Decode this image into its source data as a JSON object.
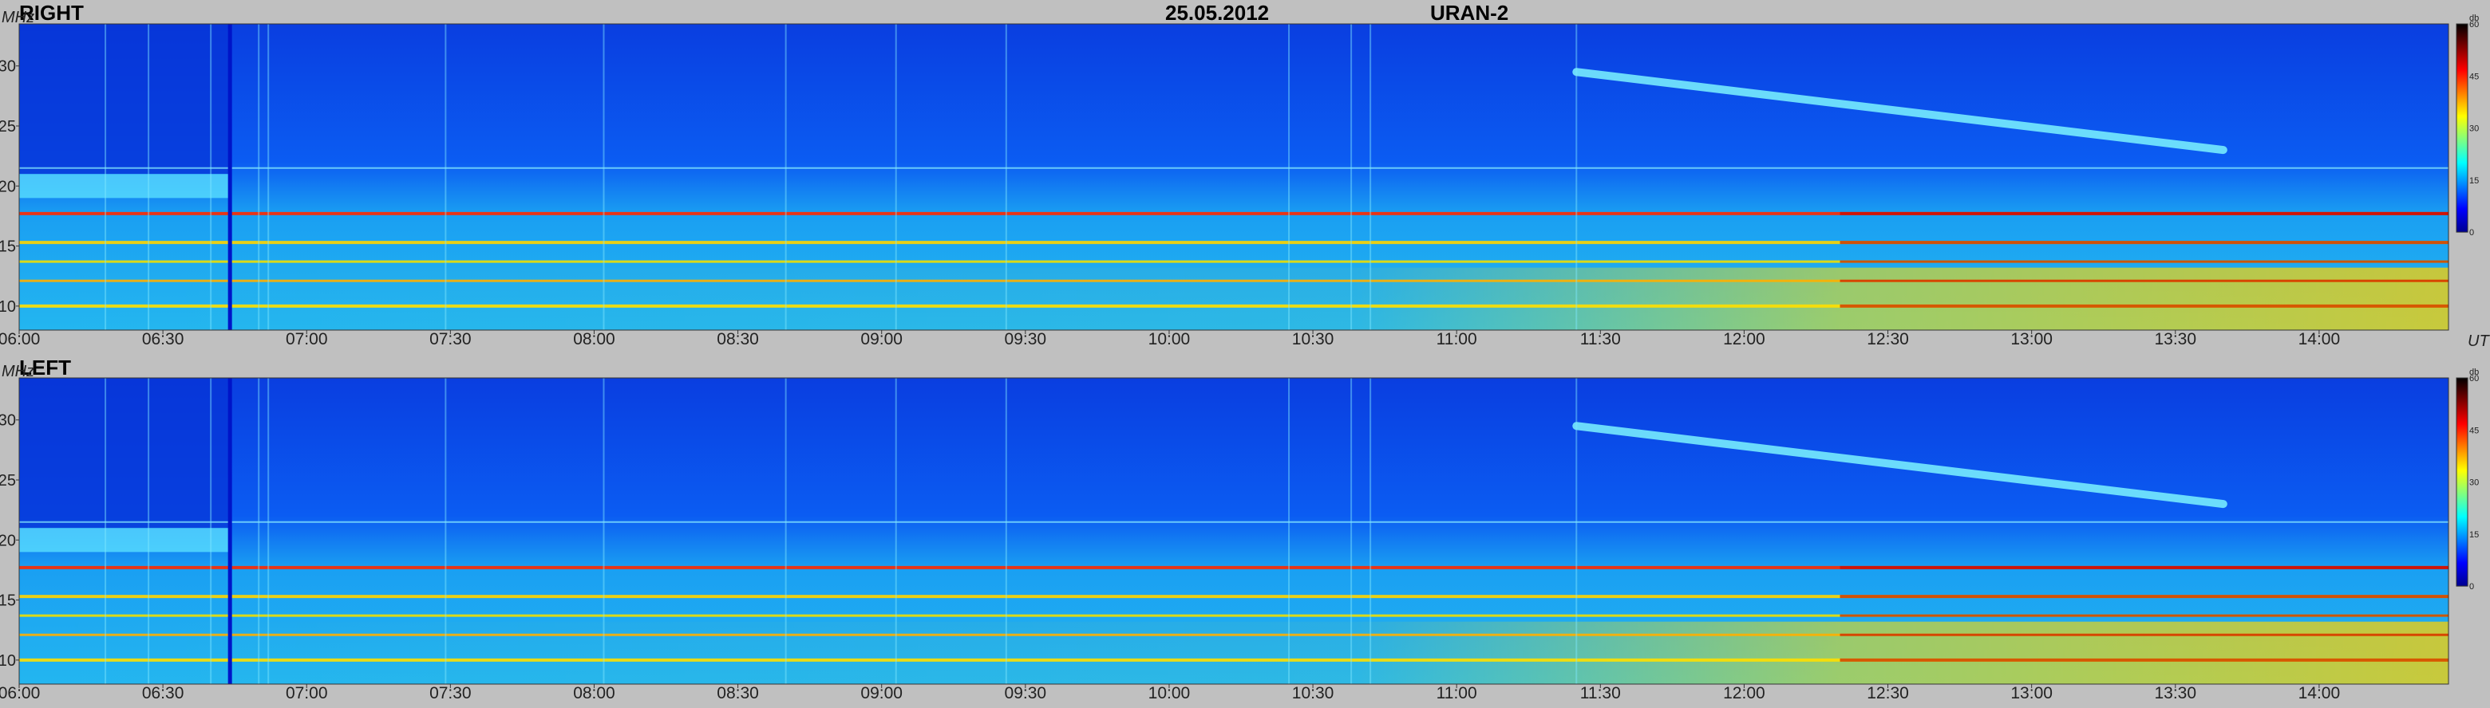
{
  "header": {
    "date": "25.05.2012",
    "instrument": "URAN-2"
  },
  "colors": {
    "background": "#c0c0c0",
    "colormap": [
      "#00008f",
      "#0000ff",
      "#0080ff",
      "#00ffff",
      "#80ff80",
      "#ffff00",
      "#ff8000",
      "#ff0000",
      "#800000",
      "#000000"
    ]
  },
  "chart_data": [
    {
      "type": "heatmap",
      "panel_label": "RIGHT",
      "ylabel": "MHz",
      "xlabel": "UT",
      "x_range": [
        "06:00",
        "14:27"
      ],
      "y_range": [
        8,
        33.5
      ],
      "yticks": [
        10,
        15,
        20,
        25,
        30
      ],
      "xticks": [
        "06:00",
        "06:30",
        "07:00",
        "07:30",
        "08:00",
        "08:30",
        "09:00",
        "09:30",
        "10:00",
        "10:30",
        "11:00",
        "11:30",
        "12:00",
        "12:30",
        "13:00",
        "13:30",
        "14:00"
      ],
      "colorbar": {
        "unit": "db",
        "range": [
          0,
          60
        ],
        "ticks": [
          0,
          15,
          30,
          45,
          60
        ]
      },
      "features": {
        "interference_lines_MHz": [
          17.7,
          15.3,
          13.7,
          12.1,
          10.0
        ],
        "drifting_emission": {
          "start_time": "11:25",
          "start_MHz": 29.5,
          "end_time": "13:40",
          "end_MHz": 23.0
        },
        "calibration_marker_time": "06:44"
      }
    },
    {
      "type": "heatmap",
      "panel_label": "LEFT",
      "ylabel": "MHz",
      "xlabel": "",
      "x_range": [
        "06:00",
        "14:27"
      ],
      "y_range": [
        8,
        33.5
      ],
      "yticks": [
        10,
        15,
        20,
        25,
        30
      ],
      "xticks": [
        "06:00",
        "06:30",
        "07:00",
        "07:30",
        "08:00",
        "08:30",
        "09:00",
        "09:30",
        "10:00",
        "10:30",
        "11:00",
        "11:30",
        "12:00",
        "12:30",
        "13:00",
        "13:30",
        "14:00"
      ],
      "colorbar": {
        "unit": "db",
        "range": [
          0,
          60
        ],
        "ticks": [
          0,
          15,
          30,
          45,
          60
        ]
      },
      "features": {
        "interference_lines_MHz": [
          17.7,
          15.3,
          13.7,
          12.1,
          10.0
        ],
        "drifting_emission": {
          "start_time": "11:25",
          "start_MHz": 29.5,
          "end_time": "13:40",
          "end_MHz": 23.0
        },
        "calibration_marker_time": "06:44"
      }
    }
  ]
}
